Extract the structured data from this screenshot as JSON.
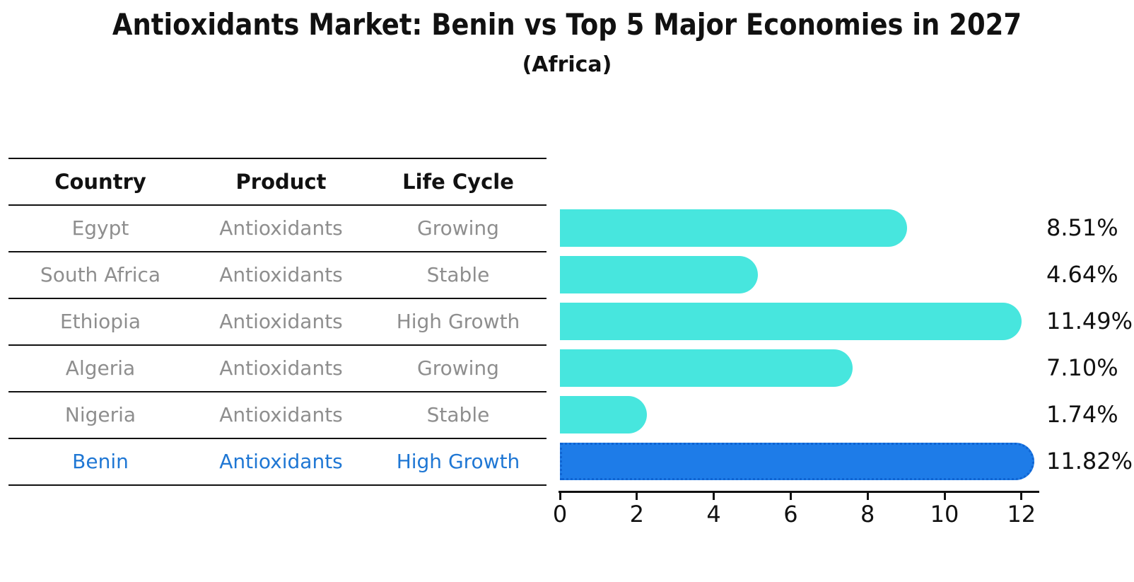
{
  "title": "Antioxidants Market: Benin vs Top 5 Major Economies in 2027",
  "subtitle": "(Africa)",
  "table": {
    "columns": [
      "Country",
      "Product",
      "Life Cycle"
    ],
    "rows": [
      {
        "country": "Egypt",
        "product": "Antioxidants",
        "life_cycle": "Growing",
        "highlight": false
      },
      {
        "country": "South Africa",
        "product": "Antioxidants",
        "life_cycle": "Stable",
        "highlight": false
      },
      {
        "country": "Ethiopia",
        "product": "Antioxidants",
        "life_cycle": "High Growth",
        "highlight": false
      },
      {
        "country": "Algeria",
        "product": "Antioxidants",
        "life_cycle": "Growing",
        "highlight": false
      },
      {
        "country": "Nigeria",
        "product": "Antioxidants",
        "life_cycle": "Stable",
        "highlight": false
      },
      {
        "country": "Benin",
        "product": "Antioxidants",
        "life_cycle": "High Growth",
        "highlight": true
      }
    ]
  },
  "chart_data": {
    "type": "bar",
    "orientation": "horizontal",
    "title": "Antioxidants Market: Benin vs Top 5 Major Economies in 2027",
    "subtitle": "(Africa)",
    "categories": [
      "Egypt",
      "South Africa",
      "Ethiopia",
      "Algeria",
      "Nigeria",
      "Benin"
    ],
    "values": [
      8.51,
      4.64,
      11.49,
      7.1,
      1.74,
      11.82
    ],
    "value_labels": [
      "8.51%",
      "4.64%",
      "11.49%",
      "7.10%",
      "1.74%",
      "11.82%"
    ],
    "highlight_index": 5,
    "xlabel": "",
    "ylabel": "",
    "xticks": [
      0,
      2,
      4,
      6,
      8,
      10,
      12
    ],
    "xlim": [
      0,
      12.5
    ],
    "grid": false,
    "legend": false
  },
  "colors": {
    "bar": "#47E6DE",
    "highlight_bar": "#1E7CE8",
    "highlight_border": "#0F64D2",
    "highlight_text": "#1F77D4",
    "table_text": "#8E8E8E",
    "ink": "#111111"
  }
}
